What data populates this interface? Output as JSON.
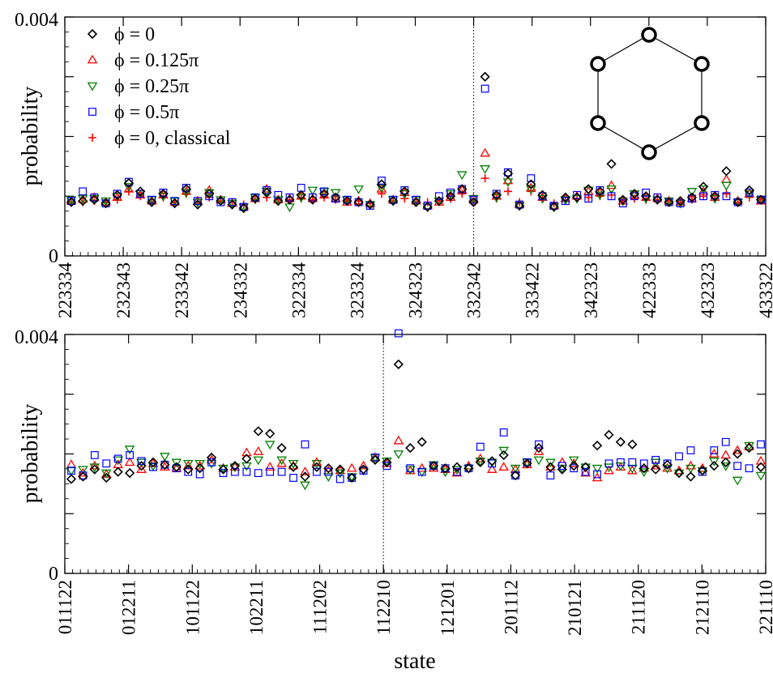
{
  "chart_data": [
    {
      "type": "scatter",
      "ylabel": "probability",
      "xlabel": "",
      "ylim": [
        0,
        0.004
      ],
      "ytick_labels": [
        "0",
        "0.004"
      ],
      "xtick_labels": [
        "223334",
        "232343",
        "233342",
        "234332",
        "322334",
        "323324",
        "324323",
        "332342",
        "333422",
        "342323",
        "422333",
        "432323",
        "433322"
      ],
      "n_states": 90,
      "marker_line_state": 7,
      "inset": "hexagon with six circles at the vertices",
      "legend_position": "top-left",
      "series": [
        {
          "name": "ϕ = 0",
          "marker": "diamond",
          "color": "#000000",
          "values": [
            0.0009,
            0.00092,
            0.00094,
            0.00088,
            0.00102,
            0.00122,
            0.00108,
            0.0009,
            0.00104,
            0.00088,
            0.00112,
            0.00086,
            0.00104,
            0.00092,
            0.00086,
            0.0008,
            0.00096,
            0.00106,
            0.00092,
            0.00094,
            0.00102,
            0.00094,
            0.00104,
            0.00098,
            0.00092,
            0.0009,
            0.00086,
            0.0012,
            0.00092,
            0.00108,
            0.0009,
            0.00082,
            0.00092,
            0.001,
            0.00112,
            0.0009,
            0.003,
            0.00102,
            0.00138,
            0.00084,
            0.0012,
            0.00102,
            0.00082,
            0.00098,
            0.00098,
            0.00112,
            0.00108,
            0.00154,
            0.00094,
            0.00104,
            0.001,
            0.00094,
            0.0009,
            0.00092,
            0.00098,
            0.00116,
            0.001,
            0.00142,
            0.0009,
            0.0011,
            0.00094
          ]
        },
        {
          "name": "ϕ =  0.125π",
          "marker": "triangle-up",
          "color": "#ff0000",
          "values": [
            0.00092,
            0.00095,
            0.00098,
            0.0009,
            0.00098,
            0.00112,
            0.00102,
            0.00092,
            0.00102,
            0.0009,
            0.00108,
            0.00092,
            0.0011,
            0.00094,
            0.00088,
            0.00082,
            0.00096,
            0.00112,
            0.00094,
            0.00096,
            0.001,
            0.00096,
            0.00102,
            0.00096,
            0.0009,
            0.00092,
            0.00088,
            0.00112,
            0.00094,
            0.00106,
            0.00092,
            0.00084,
            0.0009,
            0.00098,
            0.0011,
            0.00096,
            0.00172,
            0.001,
            0.00126,
            0.00086,
            0.00114,
            0.00098,
            0.00084,
            0.00096,
            0.001,
            0.00108,
            0.00106,
            0.00118,
            0.00092,
            0.00102,
            0.00098,
            0.00096,
            0.00092,
            0.0009,
            0.00096,
            0.00108,
            0.00098,
            0.00128,
            0.00092,
            0.00104,
            0.00092
          ]
        },
        {
          "name": "ϕ = 0.25π",
          "marker": "triangle-down",
          "color": "#008000",
          "values": [
            0.00094,
            0.00096,
            0.00096,
            0.00092,
            0.001,
            0.00116,
            0.00104,
            0.00094,
            0.001,
            0.00092,
            0.00106,
            0.0009,
            0.00106,
            0.00094,
            0.00088,
            0.00082,
            0.00098,
            0.00108,
            0.00094,
            0.00082,
            0.00098,
            0.0011,
            0.00108,
            0.00106,
            0.00094,
            0.00112,
            0.00086,
            0.00114,
            0.00094,
            0.00104,
            0.00094,
            0.00082,
            0.00092,
            0.00104,
            0.00136,
            0.00096,
            0.00146,
            0.00098,
            0.00124,
            0.00084,
            0.00112,
            0.00096,
            0.00082,
            0.00094,
            0.00096,
            0.0011,
            0.00102,
            0.00112,
            0.00092,
            0.00104,
            0.00096,
            0.00094,
            0.00092,
            0.00088,
            0.00108,
            0.00112,
            0.00096,
            0.00118,
            0.0009,
            0.00104,
            0.00094
          ]
        },
        {
          "name": "ϕ = 0.5π",
          "marker": "square",
          "color": "#0000ff",
          "values": [
            0.00092,
            0.00108,
            0.00098,
            0.00088,
            0.00104,
            0.00124,
            0.00104,
            0.00094,
            0.00106,
            0.00092,
            0.00114,
            0.00092,
            0.001,
            0.0009,
            0.0009,
            0.00082,
            0.00098,
            0.0011,
            0.00102,
            0.00098,
            0.00114,
            0.00098,
            0.00108,
            0.00096,
            0.00094,
            0.0009,
            0.00084,
            0.00126,
            0.00094,
            0.0011,
            0.00094,
            0.00084,
            0.001,
            0.00106,
            0.00112,
            0.00094,
            0.0028,
            0.00104,
            0.0014,
            0.00086,
            0.0013,
            0.001,
            0.00084,
            0.00092,
            0.00102,
            0.00096,
            0.0011,
            0.001,
            0.00088,
            0.001,
            0.00106,
            0.00098,
            0.0009,
            0.00088,
            0.00096,
            0.001,
            0.00102,
            0.001,
            0.0009,
            0.00106,
            0.00094
          ]
        },
        {
          "name": "ϕ = 0, classical",
          "marker": "plus",
          "color": "#ff0000",
          "values": [
            0.0009,
            0.0009,
            0.00092,
            0.0009,
            0.00094,
            0.00108,
            0.001,
            0.0009,
            0.00098,
            0.0009,
            0.00104,
            0.0009,
            0.00098,
            0.00092,
            0.0009,
            0.00086,
            0.00094,
            0.00098,
            0.00094,
            0.00094,
            0.00096,
            0.00094,
            0.00098,
            0.00094,
            0.00092,
            0.00092,
            0.00088,
            0.00104,
            0.00092,
            0.00096,
            0.0009,
            0.0009,
            0.00092,
            0.00096,
            0.00104,
            0.0009,
            0.0013,
            0.00096,
            0.00108,
            0.0009,
            0.00108,
            0.00096,
            0.00088,
            0.00092,
            0.00096,
            0.00098,
            0.001,
            0.00102,
            0.00092,
            0.00096,
            0.00094,
            0.00094,
            0.00092,
            0.0009,
            0.00094,
            0.001,
            0.00096,
            0.00104,
            0.0009,
            0.00098,
            0.00094
          ]
        }
      ]
    },
    {
      "type": "scatter",
      "ylabel": "probability",
      "xlabel": "state",
      "ylim": [
        0,
        0.004
      ],
      "ytick_labels": [
        "0",
        "0.004"
      ],
      "xtick_labels": [
        "011122",
        "012211",
        "101122",
        "102211",
        "111202",
        "112210",
        "121201",
        "201112",
        "210121",
        "211120",
        "212110",
        "221110"
      ],
      "n_states": 90,
      "marker_line_state": 5,
      "legend_position": "none",
      "series": [
        {
          "name": "ϕ = 0",
          "marker": "diamond",
          "color": "#000000",
          "values": [
            0.00158,
            0.00162,
            0.00174,
            0.0016,
            0.0017,
            0.00168,
            0.0018,
            0.00186,
            0.00182,
            0.00178,
            0.00174,
            0.00176,
            0.00194,
            0.00174,
            0.0018,
            0.00192,
            0.00238,
            0.00234,
            0.0021,
            0.00178,
            0.00162,
            0.00178,
            0.00176,
            0.00174,
            0.0016,
            0.00174,
            0.0019,
            0.00186,
            0.0035,
            0.0021,
            0.0022,
            0.0018,
            0.00176,
            0.00178,
            0.00176,
            0.00186,
            0.00188,
            0.00198,
            0.00164,
            0.00184,
            0.0021,
            0.00178,
            0.00174,
            0.0018,
            0.00178,
            0.00214,
            0.00232,
            0.0022,
            0.00216,
            0.00176,
            0.00174,
            0.00182,
            0.00168,
            0.00162,
            0.00172,
            0.0018,
            0.00186,
            0.002,
            0.0021,
            0.00178
          ]
        },
        {
          "name": "ϕ =  0.125π",
          "marker": "triangle-up",
          "color": "#ff0000",
          "values": [
            0.00182,
            0.00168,
            0.0018,
            0.00166,
            0.00182,
            0.00186,
            0.00174,
            0.00184,
            0.00178,
            0.00176,
            0.0018,
            0.0018,
            0.0019,
            0.00176,
            0.00178,
            0.00202,
            0.00204,
            0.00178,
            0.00184,
            0.0018,
            0.0017,
            0.00186,
            0.00172,
            0.00172,
            0.00176,
            0.0018,
            0.00194,
            0.00184,
            0.00222,
            0.00172,
            0.00176,
            0.00176,
            0.00174,
            0.00168,
            0.0018,
            0.00192,
            0.00174,
            0.00178,
            0.00174,
            0.00182,
            0.00204,
            0.00178,
            0.00186,
            0.00184,
            0.00168,
            0.0016,
            0.00172,
            0.00178,
            0.00172,
            0.00176,
            0.0018,
            0.00176,
            0.00172,
            0.0018,
            0.00176,
            0.002,
            0.00198,
            0.00206,
            0.00212,
            0.00188
          ]
        },
        {
          "name": "ϕ = 0.25π",
          "marker": "triangle-down",
          "color": "#008000",
          "values": [
            0.00172,
            0.00174,
            0.00178,
            0.00168,
            0.0019,
            0.00208,
            0.00186,
            0.0018,
            0.00196,
            0.00186,
            0.00184,
            0.00184,
            0.00184,
            0.00176,
            0.00178,
            0.0018,
            0.0019,
            0.00216,
            0.0019,
            0.00184,
            0.00148,
            0.00184,
            0.00162,
            0.00168,
            0.00162,
            0.00172,
            0.00194,
            0.00188,
            0.002,
            0.00174,
            0.0017,
            0.00182,
            0.0017,
            0.00174,
            0.00176,
            0.00188,
            0.00186,
            0.00206,
            0.00176,
            0.00186,
            0.0019,
            0.00186,
            0.00176,
            0.0019,
            0.00178,
            0.00176,
            0.00178,
            0.0018,
            0.00176,
            0.0017,
            0.00186,
            0.00176,
            0.00168,
            0.00176,
            0.00172,
            0.00188,
            0.0018,
            0.00156,
            0.00214,
            0.00164
          ]
        },
        {
          "name": "ϕ = 0.5π",
          "marker": "square",
          "color": "#0000ff",
          "values": [
            0.00172,
            0.00164,
            0.00198,
            0.00184,
            0.00192,
            0.00198,
            0.00188,
            0.00178,
            0.00182,
            0.00176,
            0.0017,
            0.00166,
            0.00186,
            0.00168,
            0.0017,
            0.0017,
            0.00168,
            0.0017,
            0.0017,
            0.0016,
            0.00216,
            0.0017,
            0.0017,
            0.00158,
            0.0016,
            0.00172,
            0.00194,
            0.0018,
            0.00402,
            0.00176,
            0.0017,
            0.0018,
            0.00176,
            0.0017,
            0.00176,
            0.00212,
            0.00184,
            0.00236,
            0.00164,
            0.00186,
            0.00216,
            0.00164,
            0.0018,
            0.00176,
            0.0017,
            0.00166,
            0.00184,
            0.00186,
            0.00186,
            0.00184,
            0.0019,
            0.00184,
            0.00196,
            0.00206,
            0.0017,
            0.00206,
            0.0022,
            0.0018,
            0.00176,
            0.00216
          ]
        },
        {
          "name": "ϕ = 0, classical",
          "marker": "plus",
          "color": "#ff0000",
          "values": []
        }
      ]
    }
  ]
}
